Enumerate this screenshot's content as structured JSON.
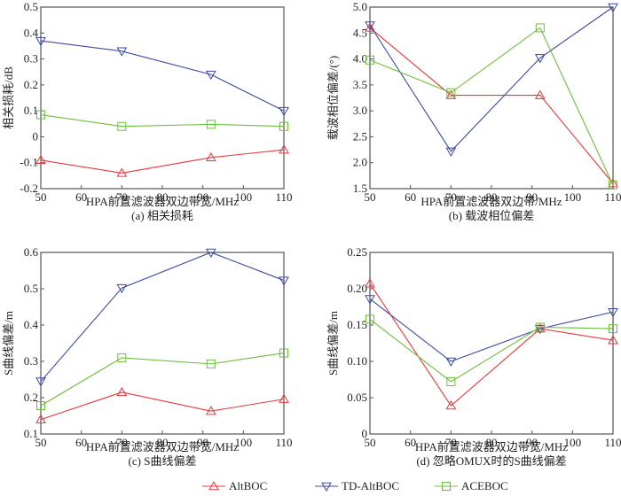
{
  "colors": {
    "AltBOC": "#e8383d",
    "TD-AltBOC": "#3b4aa0",
    "ACEBOC": "#6cbf3a",
    "axis": "#555555"
  },
  "legend": {
    "placement": "bottom-center",
    "entries": [
      {
        "name": "AltBOC",
        "marker": "triangle-up"
      },
      {
        "name": "TD-AltBOC",
        "marker": "triangle-down"
      },
      {
        "name": "ACEBOC",
        "marker": "square"
      }
    ]
  },
  "chart_data": [
    {
      "id": "a",
      "type": "line",
      "caption": "(a) 相关损耗",
      "xlabel": "HPA前置滤波器双边带宽/MHz",
      "ylabel": "相关损耗/dB",
      "xlim": [
        50,
        110
      ],
      "ylim": [
        -0.2,
        0.5
      ],
      "xticks": [
        50,
        60,
        70,
        80,
        90,
        100,
        110
      ],
      "xtick_labels": [
        "50",
        "60",
        "70",
        "80",
        "90",
        "100",
        "110"
      ],
      "yticks": [
        -0.2,
        -0.1,
        0,
        0.1,
        0.2,
        0.3,
        0.4,
        0.5
      ],
      "ytick_labels": [
        "-0.2",
        "-0.1",
        "0",
        "0.1",
        "0.2",
        "0.3",
        "0.4",
        "0.5"
      ],
      "x": [
        50,
        70,
        92,
        110
      ],
      "series": [
        {
          "name": "AltBOC",
          "values": [
            -0.09,
            -0.14,
            -0.08,
            -0.05
          ]
        },
        {
          "name": "TD-AltBOC",
          "values": [
            0.37,
            0.33,
            0.24,
            0.1
          ]
        },
        {
          "name": "ACEBOC",
          "values": [
            0.085,
            0.04,
            0.048,
            0.04
          ]
        }
      ]
    },
    {
      "id": "b",
      "type": "line",
      "caption": "(b) 载波相位偏差",
      "xlabel": "HPA前置滤波器双边带/MHz",
      "ylabel": "载波相位偏差/(°)",
      "xlim": [
        50,
        110
      ],
      "ylim": [
        1.5,
        5.0
      ],
      "xticks": [
        50,
        60,
        70,
        80,
        90,
        100,
        110
      ],
      "xtick_labels": [
        "50",
        "60",
        "70",
        "80",
        "90",
        "100",
        "110"
      ],
      "yticks": [
        1.5,
        2.0,
        2.5,
        3.0,
        3.5,
        4.0,
        4.5,
        5.0
      ],
      "ytick_labels": [
        "1.5",
        "2.0",
        "2.5",
        "3.0",
        "3.5",
        "4.0",
        "4.5",
        "5.0"
      ],
      "x": [
        50,
        70,
        92,
        110
      ],
      "series": [
        {
          "name": "AltBOC",
          "values": [
            4.6,
            3.3,
            3.3,
            1.6
          ]
        },
        {
          "name": "TD-AltBOC",
          "values": [
            4.65,
            2.22,
            4.02,
            5.0
          ]
        },
        {
          "name": "ACEBOC",
          "values": [
            3.98,
            3.35,
            4.6,
            1.57
          ]
        }
      ]
    },
    {
      "id": "c",
      "type": "line",
      "caption": "(c) S曲线偏差",
      "xlabel": "HPA前置滤波器双边带宽/MHz",
      "ylabel": "S曲线偏差/m",
      "xlim": [
        50,
        110
      ],
      "ylim": [
        0.1,
        0.6
      ],
      "xticks": [
        50,
        60,
        70,
        80,
        90,
        100,
        110
      ],
      "xtick_labels": [
        "50",
        "60",
        "70",
        "80",
        "90",
        "100",
        "110"
      ],
      "yticks": [
        0.1,
        0.2,
        0.3,
        0.4,
        0.5,
        0.6
      ],
      "ytick_labels": [
        "0.1",
        "0.2",
        "0.3",
        "0.4",
        "0.5",
        "0.6"
      ],
      "x": [
        50,
        70,
        92,
        110
      ],
      "series": [
        {
          "name": "AltBOC",
          "values": [
            0.14,
            0.215,
            0.163,
            0.196
          ]
        },
        {
          "name": "TD-AltBOC",
          "values": [
            0.245,
            0.502,
            0.6,
            0.523
          ]
        },
        {
          "name": "ACEBOC",
          "values": [
            0.178,
            0.31,
            0.293,
            0.323
          ]
        }
      ]
    },
    {
      "id": "d",
      "type": "line",
      "caption": "(d) 忽略OMUX时的S曲线偏差",
      "xlabel": "HPA前置滤波器双边带宽/MHz",
      "ylabel": "S曲线偏差/m",
      "xlim": [
        50,
        110
      ],
      "ylim": [
        0,
        0.25
      ],
      "xticks": [
        50,
        60,
        70,
        80,
        90,
        100,
        110
      ],
      "xtick_labels": [
        "50",
        "60",
        "70",
        "80",
        "90",
        "100",
        "110"
      ],
      "yticks": [
        0,
        0.05,
        0.1,
        0.15,
        0.2,
        0.25
      ],
      "ytick_labels": [
        "0",
        "0.05",
        "0.10",
        "0.15",
        "0.20",
        "0.25"
      ],
      "x": [
        50,
        70,
        92,
        110
      ],
      "series": [
        {
          "name": "AltBOC",
          "values": [
            0.207,
            0.039,
            0.145,
            0.129
          ]
        },
        {
          "name": "TD-AltBOC",
          "values": [
            0.186,
            0.1,
            0.145,
            0.168
          ]
        },
        {
          "name": "ACEBOC",
          "values": [
            0.158,
            0.072,
            0.147,
            0.145
          ]
        }
      ]
    }
  ]
}
